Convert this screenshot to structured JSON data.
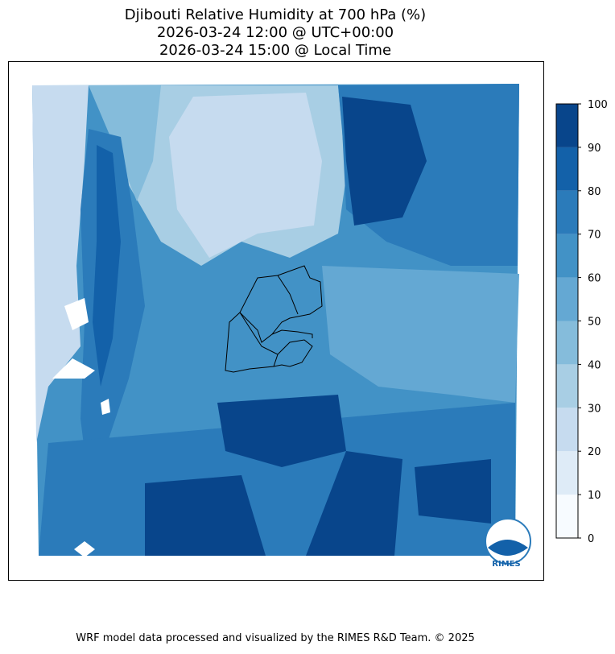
{
  "title": {
    "lines": [
      "Djibouti Relative Humidity at 700 hPa (%)",
      "2026-03-24 12:00 @ UTC+00:00",
      "2026-03-24 15:00 @ Local Time"
    ]
  },
  "colorbar": {
    "ticks": [
      0,
      10,
      20,
      30,
      40,
      50,
      60,
      70,
      80,
      90,
      100
    ],
    "colors": [
      "#f7fbff",
      "#deebf7",
      "#c6dbef",
      "#a8cee4",
      "#85bcdb",
      "#64a8d3",
      "#4292c6",
      "#2b7bba",
      "#1361a9",
      "#08458b"
    ]
  },
  "logo": {
    "text": "RIMES"
  },
  "footer": {
    "text": "WRF model data processed and visualized by the RIMES R&D Team. © 2025"
  }
}
